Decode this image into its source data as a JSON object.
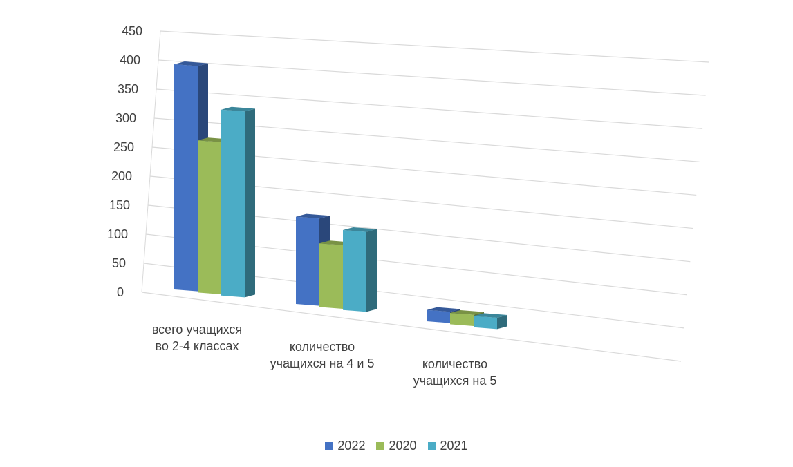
{
  "chart_data": {
    "type": "bar",
    "subtype": "3d-clustered-column",
    "categories": [
      "всего учащихся во 2-4 классах",
      "количество учащихся на 4 и 5",
      "количество учащихся на 5"
    ],
    "category_lines": [
      [
        "всего учащихся",
        "во 2-4 классах"
      ],
      [
        "количество",
        "учащихся на 4 и 5"
      ],
      [
        "количество",
        "учащихся на 5"
      ]
    ],
    "series": [
      {
        "name": "2022",
        "values": [
          400,
          155,
          20
        ],
        "color": "#4472c4"
      },
      {
        "name": "2020",
        "values": [
          270,
          113,
          20
        ],
        "color": "#9bbb59"
      },
      {
        "name": "2021",
        "values": [
          330,
          142,
          20
        ],
        "color": "#4bacc6"
      }
    ],
    "ylim": [
      0,
      450
    ],
    "yticks": [
      "0",
      "50",
      "100",
      "150",
      "200",
      "250",
      "300",
      "350",
      "400",
      "450"
    ],
    "grid": true,
    "legend_position": "bottom"
  }
}
